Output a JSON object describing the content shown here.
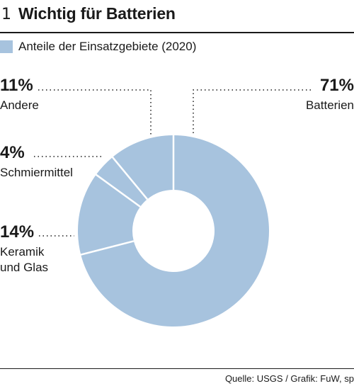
{
  "header": {
    "figure_number": "1",
    "title": "Wichtig für Batterien"
  },
  "legend": {
    "label": "Anteile der Einsatzgebiete (2020)",
    "color": "#a7c3de"
  },
  "source": "Quelle: USGS / Grafik: FuW, sp",
  "colors": {
    "slice": "#a7c3de",
    "separator": "#ffffff",
    "text": "#1a1a1a"
  },
  "chart_data": {
    "type": "pie",
    "variant": "donut",
    "title": "Wichtig für Batterien",
    "legend": "Anteile der Einsatzgebiete (2020)",
    "categories": [
      "Batterien",
      "Keramik und Glas",
      "Schmiermittel",
      "Andere"
    ],
    "values": [
      71,
      14,
      4,
      11
    ],
    "labels": [
      {
        "value_label": "71%",
        "name_lines": [
          "Batterien"
        ]
      },
      {
        "value_label": "14%",
        "name_lines": [
          "Keramik",
          "und Glas"
        ]
      },
      {
        "value_label": "4%",
        "name_lines": [
          "Schmiermittel"
        ]
      },
      {
        "value_label": "11%",
        "name_lines": [
          "Andere"
        ]
      }
    ]
  }
}
